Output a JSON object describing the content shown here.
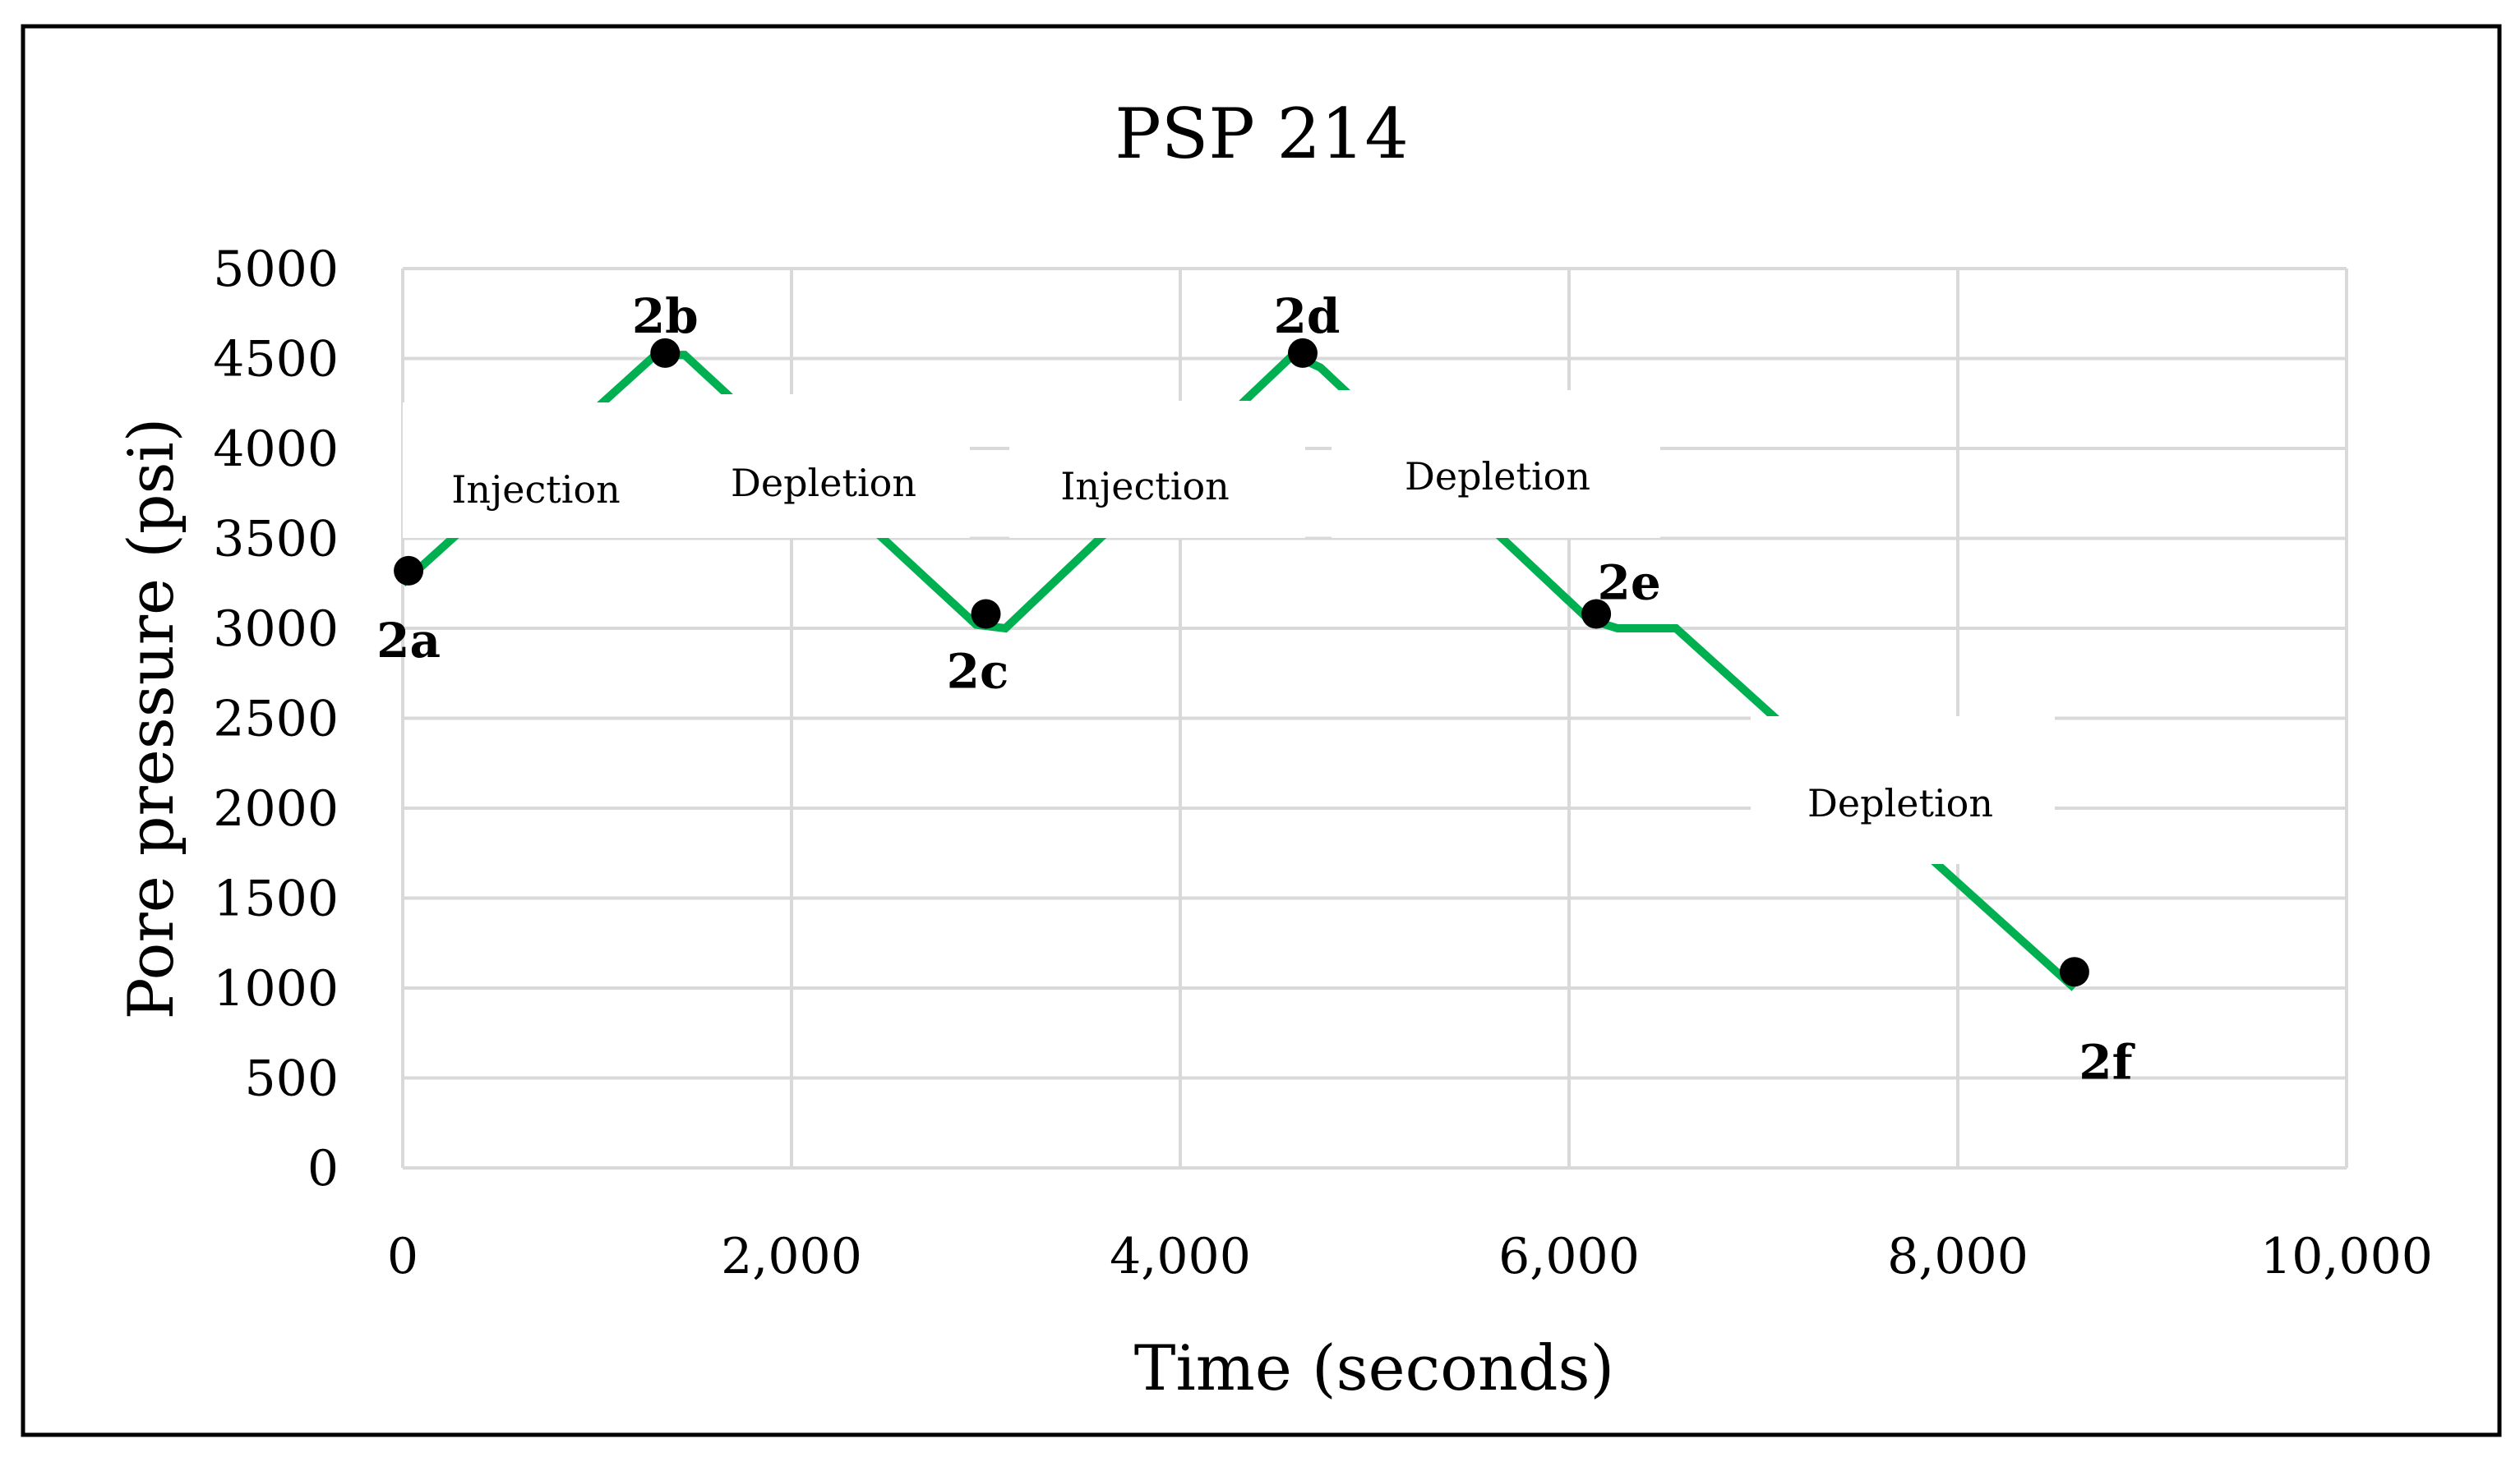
{
  "chart_data": {
    "type": "line",
    "title": "PSP 214",
    "xlabel": "Time (seconds)",
    "ylabel": "Pore pressure (psi)",
    "xlim": [
      0,
      10000
    ],
    "ylim": [
      0,
      5000
    ],
    "x_ticks": [
      0,
      2000,
      4000,
      6000,
      8000,
      10000
    ],
    "x_tick_labels": [
      "0",
      "2,000",
      "4,000",
      "6,000",
      "8,000",
      "10,000"
    ],
    "y_ticks": [
      0,
      500,
      1000,
      1500,
      2000,
      2500,
      3000,
      3500,
      4000,
      4500,
      5000
    ],
    "y_tick_labels": [
      "0",
      "500",
      "1000",
      "1500",
      "2000",
      "2500",
      "3000",
      "3500",
      "4000",
      "4500",
      "5000"
    ],
    "grid": true,
    "series": [
      {
        "name": "Pore pressure",
        "color": "#00b050",
        "x": [
          0,
          1300,
          1450,
          2950,
          3100,
          4580,
          4720,
          6100,
          6250,
          6550,
          8600
        ],
        "y": [
          3250,
          4520,
          4520,
          3020,
          3000,
          4520,
          4450,
          3050,
          3000,
          3000,
          1000
        ]
      }
    ],
    "points": [
      {
        "label": "2a",
        "x": 30,
        "y": 3320
      },
      {
        "label": "2b",
        "x": 1350,
        "y": 4530
      },
      {
        "label": "2c",
        "x": 3000,
        "y": 3080
      },
      {
        "label": "2d",
        "x": 4630,
        "y": 4530
      },
      {
        "label": "2e",
        "x": 6140,
        "y": 3080
      },
      {
        "label": "2f",
        "x": 8600,
        "y": 1090
      }
    ],
    "annotations": [
      {
        "text": "Injection",
        "phase": "2a to 2b"
      },
      {
        "text": "Depletion",
        "phase": "2b to 2c"
      },
      {
        "text": "Injection",
        "phase": "2c to 2d"
      },
      {
        "text": "Depletion",
        "phase": "2d to 2e"
      },
      {
        "text": "Depletion",
        "phase": "2e to 2f"
      }
    ]
  }
}
